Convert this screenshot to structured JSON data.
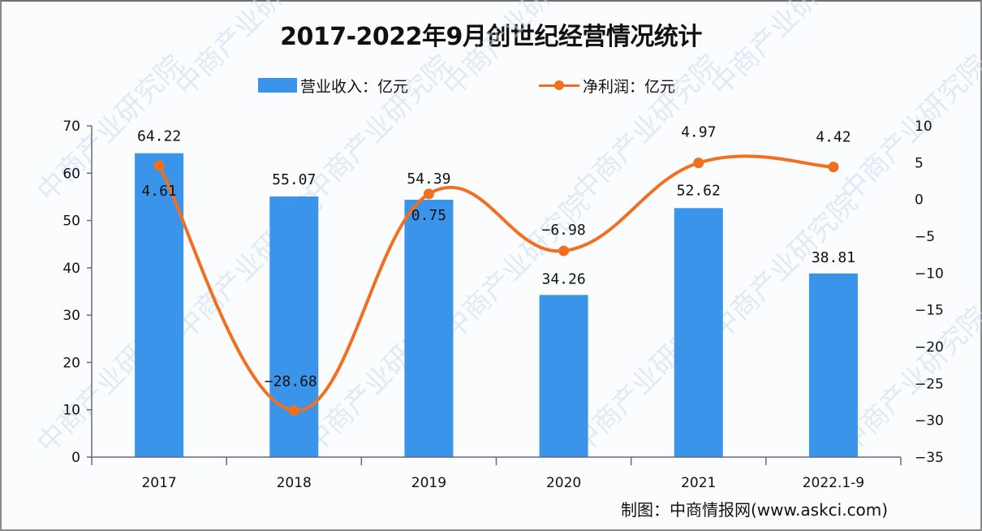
{
  "title": "2017-2022年9月创世纪经营情况统计",
  "legend": {
    "bar_label": "营业收入：亿元",
    "line_label": "净利润：亿元"
  },
  "credit": "制图：中商情报网(www.askci.com)",
  "watermark": "中商产业研究院",
  "colors": {
    "bar": "#3a94ea",
    "line": "#f07020",
    "text": "#111111",
    "axis": "#6a6a7a"
  },
  "chart_data": {
    "type": "bar+line",
    "title": "2017-2022年9月创世纪经营情况统计",
    "categories": [
      "2017",
      "2018",
      "2019",
      "2020",
      "2021",
      "2022.1-9"
    ],
    "series": [
      {
        "name": "营业收入：亿元",
        "type": "bar",
        "axis": "left",
        "values": [
          64.22,
          55.07,
          54.39,
          34.26,
          52.62,
          38.81
        ]
      },
      {
        "name": "净利润：亿元",
        "type": "line",
        "axis": "right",
        "values": [
          4.61,
          -28.68,
          0.75,
          -6.98,
          4.97,
          4.42
        ]
      }
    ],
    "left_axis": {
      "range": [
        0,
        70
      ],
      "ticks": [
        0,
        10,
        20,
        30,
        40,
        50,
        60,
        70
      ]
    },
    "right_axis": {
      "range": [
        -35,
        10
      ],
      "ticks": [
        10,
        5,
        0,
        -5,
        -10,
        -15,
        -20,
        -25,
        -30,
        -35
      ]
    },
    "grid": false,
    "legend_position": "top"
  }
}
